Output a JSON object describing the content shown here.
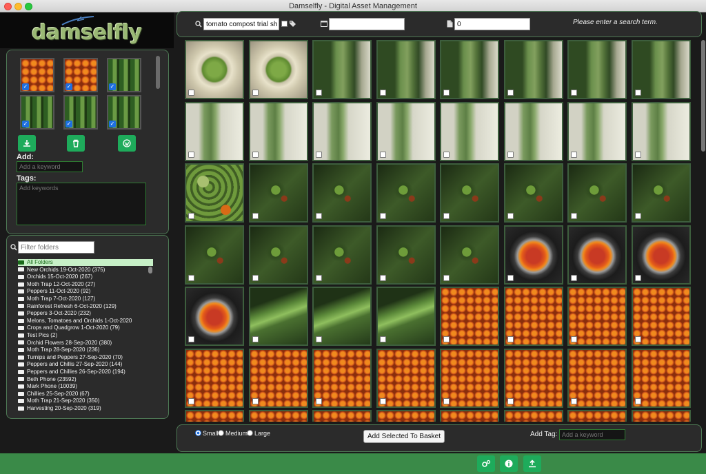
{
  "window": {
    "title": "Damselfly - Digital Asset Management"
  },
  "logo": {
    "text": "damselfly"
  },
  "basket": {
    "thumbs": [
      {
        "img": "cherry",
        "checked": true
      },
      {
        "img": "cherry",
        "checked": true
      },
      {
        "img": "green",
        "checked": true
      },
      {
        "img": "green",
        "checked": true
      },
      {
        "img": "green",
        "checked": true
      },
      {
        "img": "green",
        "checked": true
      }
    ],
    "buttons": [
      "download-icon",
      "trash-icon",
      "wordpress-icon"
    ]
  },
  "tagging": {
    "add_label": "Add:",
    "add_placeholder": "Add a keyword",
    "tags_label": "Tags:",
    "tags_placeholder": "Add keywords"
  },
  "folders": {
    "filter_placeholder": "Filter folders",
    "items": [
      "All Folders",
      "New Orchids 19-Oct-2020 (375)",
      "Orchids 15-Oct-2020 (267)",
      "Moth Trap 12-Oct-2020 (27)",
      "Peppers 11-Oct-2020 (92)",
      "Moth Trap 7-Oct-2020 (127)",
      "Rainforest Refresh 6-Oct-2020 (129)",
      "Peppers 3-Oct-2020 (232)",
      "Melons, Tomatoes and Orchids 1-Oct-2020",
      "Crops and Quadgrow 1-Oct-2020 (79)",
      "Test Pics (2)",
      "Orchid Flowers 28-Sep-2020 (380)",
      "Moth Trap 28-Sep-2020 (236)",
      "Turnips and Peppers 27-Sep-2020 (70)",
      "Peppers and Chillis 27-Sep-2020 (144)",
      "Peppers and Chillies 26-Sep-2020 (194)",
      "Beth Phone (23592)",
      "Mark Phone (10039)",
      "Chillies 25-Sep-2020 (67)",
      "Moth Trap 21-Sep-2020 (350)",
      "Harvesting 20-Sep-2020 (319)"
    ]
  },
  "search": {
    "query": "tomato compost trial sh",
    "date_value": "",
    "min_size": "0",
    "message": "Please enter a search term."
  },
  "grid": {
    "rows": [
      [
        "gpeas",
        "gpeas",
        "stem",
        "stem",
        "stem",
        "stem",
        "stem",
        "stem"
      ],
      [
        "stemb",
        "stemb",
        "stemb",
        "stemb",
        "stemb",
        "stemb",
        "stemb",
        "stemb"
      ],
      [
        "mixed",
        "truss",
        "truss",
        "truss",
        "truss",
        "truss",
        "truss",
        "truss"
      ],
      [
        "truss",
        "truss",
        "truss",
        "truss",
        "truss",
        "bowl",
        "bowl",
        "bowl"
      ],
      [
        "bowl",
        "hook",
        "hook",
        "hook",
        "cherry",
        "cherry",
        "cherry",
        "cherry"
      ],
      [
        "cherry",
        "cherry",
        "cherry",
        "cherry",
        "cherry",
        "cherry",
        "cherry",
        "cherry"
      ],
      [
        "cherry",
        "cherry",
        "cherry",
        "cherry",
        "cherry",
        "cherry",
        "cherry",
        "cherry"
      ]
    ]
  },
  "bottom": {
    "size_options": [
      "Small",
      "Medium",
      "Large"
    ],
    "selected_size": "Small",
    "add_basket_label": "Add Selected To Basket",
    "add_tag_label": "Add Tag:",
    "add_tag_placeholder": "Add a keyword"
  },
  "status": {
    "buttons": [
      "cogs-icon",
      "info-icon",
      "upload-icon"
    ]
  }
}
